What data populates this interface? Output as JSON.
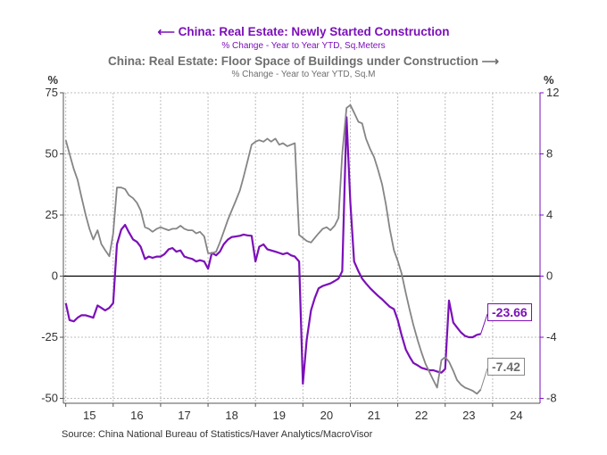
{
  "chart_data": {
    "type": "line",
    "title": "China: Real Estate: Newly Started Construction",
    "title_subtitle": "% Change - Year to Year   YTD, Sq.Meters",
    "title2": "China: Real Estate: Floor Space of Buildings under Construction",
    "title2_subtitle": "% Change - Year to Year   YTD, Sq.M",
    "left_axis": {
      "label": "%",
      "ylim": [
        -52,
        75
      ],
      "ticks": [
        75,
        50,
        25,
        0,
        -25,
        -50
      ],
      "tick_labels": [
        "75",
        "50",
        "25",
        "0",
        "-25",
        "-50"
      ]
    },
    "right_axis": {
      "label": "%",
      "ylim": [
        -8.32,
        12
      ],
      "ticks": [
        12,
        8,
        4,
        0,
        -4,
        -8
      ],
      "tick_labels": [
        "12",
        "8",
        "4",
        "0",
        "-4",
        "-8"
      ]
    },
    "x_axis": {
      "xlim": [
        2014.95,
        2025.0
      ],
      "year_ticks": [
        2015,
        2016,
        2017,
        2018,
        2019,
        2020,
        2021,
        2022,
        2023,
        2024
      ],
      "labels": [
        "15",
        "16",
        "17",
        "18",
        "19",
        "20",
        "21",
        "22",
        "23",
        "24"
      ]
    },
    "grid": true,
    "series": [
      {
        "name": "Newly Started Construction",
        "axis": "left",
        "color": "#7b10b8",
        "points": [
          [
            2015.0,
            -11
          ],
          [
            2015.08,
            -18
          ],
          [
            2015.17,
            -18.5
          ],
          [
            2015.25,
            -17
          ],
          [
            2015.33,
            -16
          ],
          [
            2015.42,
            -16
          ],
          [
            2015.5,
            -16.5
          ],
          [
            2015.58,
            -17
          ],
          [
            2015.67,
            -12
          ],
          [
            2015.75,
            -13
          ],
          [
            2015.83,
            -14
          ],
          [
            2015.92,
            -13
          ],
          [
            2016.0,
            -11
          ],
          [
            2016.08,
            13
          ],
          [
            2016.17,
            19
          ],
          [
            2016.25,
            21
          ],
          [
            2016.33,
            18
          ],
          [
            2016.42,
            15
          ],
          [
            2016.5,
            14
          ],
          [
            2016.58,
            12
          ],
          [
            2016.67,
            7
          ],
          [
            2016.75,
            8
          ],
          [
            2016.83,
            7.5
          ],
          [
            2016.92,
            8
          ],
          [
            2017.0,
            8
          ],
          [
            2017.08,
            9
          ],
          [
            2017.17,
            11
          ],
          [
            2017.25,
            11.5
          ],
          [
            2017.33,
            10
          ],
          [
            2017.42,
            10.5
          ],
          [
            2017.5,
            8
          ],
          [
            2017.58,
            7.5
          ],
          [
            2017.67,
            7
          ],
          [
            2017.75,
            6
          ],
          [
            2017.83,
            6.5
          ],
          [
            2017.92,
            6
          ],
          [
            2018.0,
            3
          ],
          [
            2018.08,
            9.5
          ],
          [
            2018.17,
            8.5
          ],
          [
            2018.25,
            10
          ],
          [
            2018.33,
            13
          ],
          [
            2018.42,
            15
          ],
          [
            2018.5,
            16
          ],
          [
            2018.58,
            16.2
          ],
          [
            2018.67,
            16.5
          ],
          [
            2018.75,
            17
          ],
          [
            2018.83,
            16.7
          ],
          [
            2018.92,
            16.5
          ],
          [
            2019.0,
            6
          ],
          [
            2019.08,
            12
          ],
          [
            2019.17,
            13
          ],
          [
            2019.25,
            11
          ],
          [
            2019.33,
            10.5
          ],
          [
            2019.42,
            10
          ],
          [
            2019.5,
            9.5
          ],
          [
            2019.58,
            9
          ],
          [
            2019.67,
            9.5
          ],
          [
            2019.75,
            8.5
          ],
          [
            2019.83,
            8
          ],
          [
            2019.92,
            6
          ],
          [
            2020.0,
            -44
          ],
          [
            2020.08,
            -26
          ],
          [
            2020.17,
            -14
          ],
          [
            2020.25,
            -9
          ],
          [
            2020.33,
            -5
          ],
          [
            2020.42,
            -4
          ],
          [
            2020.5,
            -3.5
          ],
          [
            2020.58,
            -3
          ],
          [
            2020.67,
            -2
          ],
          [
            2020.75,
            -1
          ],
          [
            2020.83,
            2
          ],
          [
            2020.92,
            65
          ],
          [
            2021.0,
            30
          ],
          [
            2021.08,
            6
          ],
          [
            2021.17,
            2
          ],
          [
            2021.25,
            -1
          ],
          [
            2021.33,
            -3
          ],
          [
            2021.42,
            -5
          ],
          [
            2021.5,
            -6.5
          ],
          [
            2021.58,
            -8
          ],
          [
            2021.67,
            -9.5
          ],
          [
            2021.75,
            -11
          ],
          [
            2021.83,
            -12.5
          ],
          [
            2021.92,
            -13.5
          ],
          [
            2022.0,
            -18
          ],
          [
            2022.08,
            -24
          ],
          [
            2022.17,
            -30
          ],
          [
            2022.25,
            -33
          ],
          [
            2022.33,
            -35.5
          ],
          [
            2022.42,
            -36.5
          ],
          [
            2022.5,
            -37.5
          ],
          [
            2022.58,
            -38
          ],
          [
            2022.67,
            -38.5
          ],
          [
            2022.75,
            -38.5
          ],
          [
            2022.83,
            -39
          ],
          [
            2022.92,
            -39.5
          ],
          [
            2023.0,
            -38
          ],
          [
            2023.08,
            -10
          ],
          [
            2023.17,
            -19
          ],
          [
            2023.25,
            -21
          ],
          [
            2023.33,
            -23
          ],
          [
            2023.42,
            -24.5
          ],
          [
            2023.5,
            -25
          ],
          [
            2023.58,
            -25
          ],
          [
            2023.67,
            -24
          ],
          [
            2023.75,
            -23.66
          ]
        ]
      },
      {
        "name": "Floor Space of Buildings under Construction",
        "axis": "right",
        "color": "#858585",
        "points": [
          [
            2015.0,
            8.9
          ],
          [
            2015.08,
            8
          ],
          [
            2015.17,
            7
          ],
          [
            2015.25,
            6.3
          ],
          [
            2015.33,
            5.2
          ],
          [
            2015.42,
            4
          ],
          [
            2015.5,
            3.1
          ],
          [
            2015.58,
            2.4
          ],
          [
            2015.67,
            3
          ],
          [
            2015.75,
            2.1
          ],
          [
            2015.83,
            1.7
          ],
          [
            2015.92,
            1.3
          ],
          [
            2016.0,
            2.8
          ],
          [
            2016.08,
            5.8
          ],
          [
            2016.17,
            5.8
          ],
          [
            2016.25,
            5.7
          ],
          [
            2016.33,
            5.3
          ],
          [
            2016.42,
            5.1
          ],
          [
            2016.5,
            4.8
          ],
          [
            2016.58,
            4.3
          ],
          [
            2016.67,
            3.2
          ],
          [
            2016.75,
            3.1
          ],
          [
            2016.83,
            2.9
          ],
          [
            2016.92,
            3.1
          ],
          [
            2017.0,
            3.2
          ],
          [
            2017.08,
            3.1
          ],
          [
            2017.17,
            3
          ],
          [
            2017.25,
            3.1
          ],
          [
            2017.33,
            3.1
          ],
          [
            2017.42,
            3.3
          ],
          [
            2017.5,
            3.1
          ],
          [
            2017.58,
            3
          ],
          [
            2017.67,
            3
          ],
          [
            2017.75,
            2.8
          ],
          [
            2017.83,
            2.9
          ],
          [
            2017.92,
            2.6
          ],
          [
            2018.0,
            1.5
          ],
          [
            2018.08,
            1.5
          ],
          [
            2018.17,
            1.6
          ],
          [
            2018.25,
            2.2
          ],
          [
            2018.33,
            2.9
          ],
          [
            2018.42,
            3.7
          ],
          [
            2018.5,
            4.3
          ],
          [
            2018.58,
            4.9
          ],
          [
            2018.67,
            5.6
          ],
          [
            2018.75,
            6.5
          ],
          [
            2018.83,
            7.5
          ],
          [
            2018.92,
            8.6
          ],
          [
            2019.0,
            8.8
          ],
          [
            2019.08,
            8.9
          ],
          [
            2019.17,
            8.8
          ],
          [
            2019.25,
            9
          ],
          [
            2019.33,
            8.8
          ],
          [
            2019.42,
            9
          ],
          [
            2019.5,
            8.6
          ],
          [
            2019.58,
            8.7
          ],
          [
            2019.67,
            8.5
          ],
          [
            2019.75,
            8.6
          ],
          [
            2019.83,
            8.7
          ],
          [
            2019.92,
            2.7
          ],
          [
            2020.0,
            2.5
          ],
          [
            2020.08,
            2.3
          ],
          [
            2020.17,
            2.2
          ],
          [
            2020.25,
            2.5
          ],
          [
            2020.33,
            2.8
          ],
          [
            2020.42,
            3.1
          ],
          [
            2020.5,
            3.2
          ],
          [
            2020.58,
            3
          ],
          [
            2020.67,
            3.3
          ],
          [
            2020.75,
            3.8
          ],
          [
            2020.83,
            8
          ],
          [
            2020.92,
            11
          ],
          [
            2021.0,
            11.2
          ],
          [
            2021.08,
            10.7
          ],
          [
            2021.17,
            10.1
          ],
          [
            2021.25,
            10
          ],
          [
            2021.33,
            9
          ],
          [
            2021.42,
            8.3
          ],
          [
            2021.5,
            7.8
          ],
          [
            2021.58,
            7
          ],
          [
            2021.67,
            6
          ],
          [
            2021.75,
            4.7
          ],
          [
            2021.83,
            3.1
          ],
          [
            2021.92,
            1.7
          ],
          [
            2022.0,
            1
          ],
          [
            2022.08,
            0.2
          ],
          [
            2022.17,
            -1.1
          ],
          [
            2022.25,
            -2.2
          ],
          [
            2022.33,
            -3.2
          ],
          [
            2022.42,
            -4.2
          ],
          [
            2022.5,
            -5
          ],
          [
            2022.58,
            -5.7
          ],
          [
            2022.67,
            -6.3
          ],
          [
            2022.75,
            -6.8
          ],
          [
            2022.83,
            -7.3
          ],
          [
            2022.92,
            -5.5
          ],
          [
            2023.0,
            -5.3
          ],
          [
            2023.08,
            -5.6
          ],
          [
            2023.17,
            -6.2
          ],
          [
            2023.25,
            -6.8
          ],
          [
            2023.33,
            -7.1
          ],
          [
            2023.42,
            -7.3
          ],
          [
            2023.5,
            -7.4
          ],
          [
            2023.58,
            -7.5
          ],
          [
            2023.67,
            -7.7
          ],
          [
            2023.75,
            -7.42
          ]
        ]
      }
    ],
    "annotations": [
      {
        "series": "Newly Started Construction",
        "text": "-23.66"
      },
      {
        "series": "Floor Space of Buildings under Construction",
        "text": "-7.42"
      }
    ],
    "source": "Source:  China National Bureau of Statistics/Haver Analytics/MacroVisor"
  },
  "colors": {
    "purple": "#7b10b8",
    "gray": "#858585",
    "grid": "#bdbdbd"
  }
}
